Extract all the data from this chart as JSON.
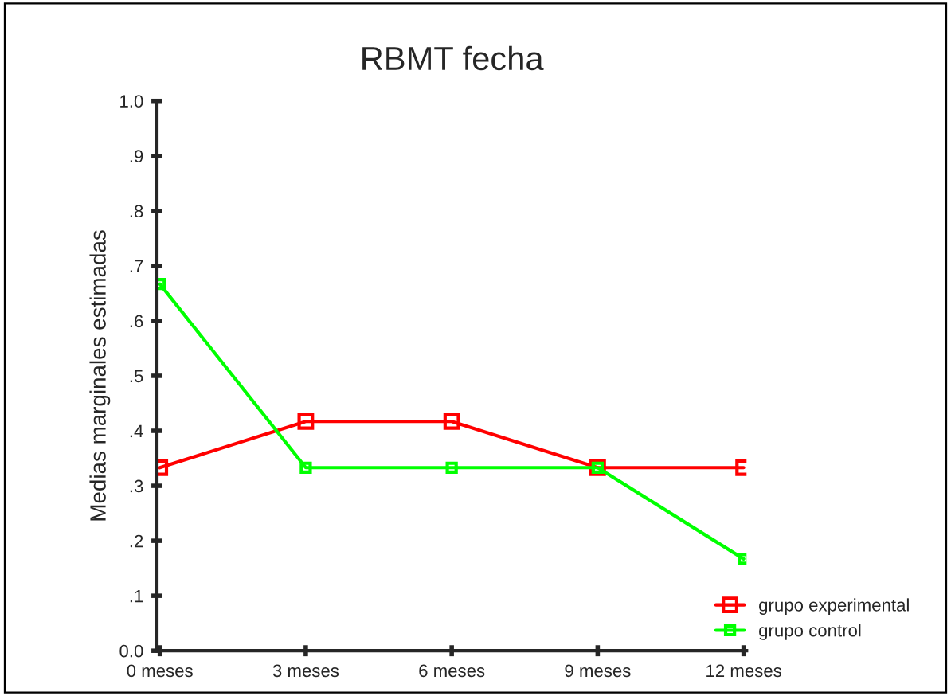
{
  "chart_data": {
    "type": "line",
    "title": "RBMT fecha",
    "ylabel": "Medias marginales estimadas",
    "categories": [
      "0 meses",
      "3 meses",
      "6 meses",
      "9 meses",
      "12 meses"
    ],
    "series": [
      {
        "name": "grupo experimental",
        "color": "#ff0000",
        "values": [
          0.333,
          0.417,
          0.417,
          0.333,
          0.333
        ]
      },
      {
        "name": "grupo control",
        "color": "#00ff00",
        "values": [
          0.667,
          0.333,
          0.333,
          0.333,
          0.167
        ]
      }
    ],
    "ylim": [
      0,
      1.0
    ],
    "yticks": [
      {
        "value": 0,
        "label": "0.0"
      },
      {
        "value": 0.1,
        "label": ".1"
      },
      {
        "value": 0.2,
        "label": ".2"
      },
      {
        "value": 0.3,
        "label": ".3"
      },
      {
        "value": 0.4,
        "label": ".4"
      },
      {
        "value": 0.5,
        "label": ".5"
      },
      {
        "value": 0.6,
        "label": ".6"
      },
      {
        "value": 0.7,
        "label": ".7"
      },
      {
        "value": 0.8,
        "label": ".8"
      },
      {
        "value": 0.9,
        "label": ".9"
      },
      {
        "value": 1.0,
        "label": "1.0"
      }
    ],
    "marker": "square",
    "line_style": "solid",
    "grid": false,
    "legend": "bottom right"
  }
}
